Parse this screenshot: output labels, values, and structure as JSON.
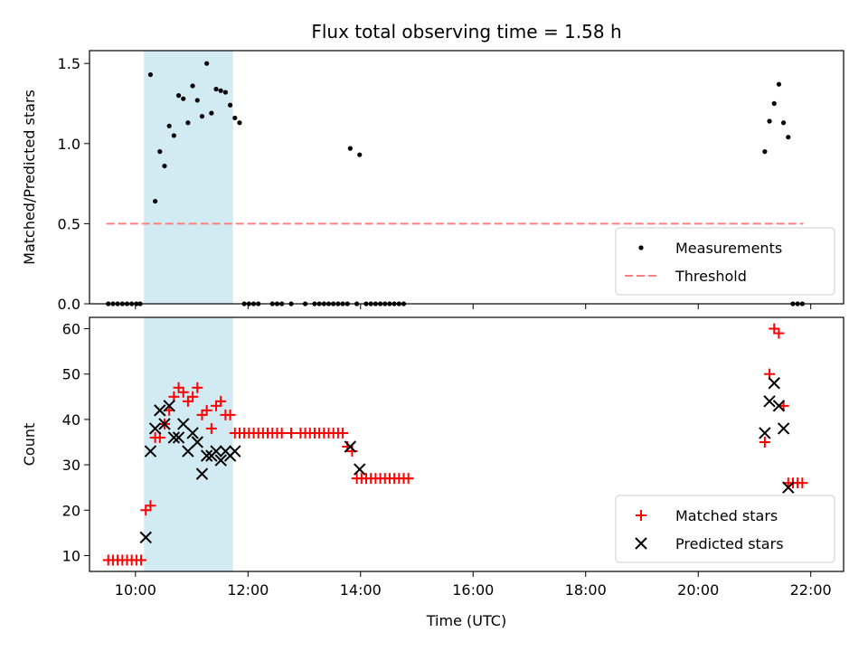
{
  "chart_data": {
    "title": "Flux total observing time = 1.58 h",
    "xlabel": "Time (UTC)",
    "x_ticks": [
      "10:00",
      "12:00",
      "14:00",
      "16:00",
      "18:00",
      "20:00",
      "22:00"
    ],
    "x_range": [
      "09:11",
      "22:35"
    ],
    "highlight_span": [
      "10:09",
      "11:44"
    ],
    "highlight_color": "#add8e6",
    "panels": [
      {
        "type": "scatter",
        "ylabel": "Matched/Predicted stars",
        "ylim": [
          0,
          1.58
        ],
        "y_ticks": [
          "0.0",
          "0.5",
          "1.0",
          "1.5"
        ],
        "threshold": 0.5,
        "threshold_range": [
          "09:29",
          "21:52"
        ],
        "legend_position": "lower-right",
        "series": [
          {
            "name": "Measurements",
            "color": "#000000",
            "marker": "dot",
            "points": [
              [
                "09:31",
                0
              ],
              [
                "09:36",
                0
              ],
              [
                "09:41",
                0
              ],
              [
                "09:46",
                0
              ],
              [
                "09:51",
                0
              ],
              [
                "09:56",
                0
              ],
              [
                "10:01",
                0
              ],
              [
                "10:05",
                0
              ],
              [
                "10:16",
                1.43
              ],
              [
                "10:21",
                0.64
              ],
              [
                "10:26",
                0.95
              ],
              [
                "10:31",
                0.86
              ],
              [
                "10:36",
                1.11
              ],
              [
                "10:41",
                1.05
              ],
              [
                "10:46",
                1.3
              ],
              [
                "10:51",
                1.28
              ],
              [
                "10:56",
                1.13
              ],
              [
                "11:01",
                1.36
              ],
              [
                "11:06",
                1.27
              ],
              [
                "11:11",
                1.17
              ],
              [
                "11:16",
                1.5
              ],
              [
                "11:21",
                1.19
              ],
              [
                "11:26",
                1.34
              ],
              [
                "11:31",
                1.33
              ],
              [
                "11:36",
                1.32
              ],
              [
                "11:41",
                1.24
              ],
              [
                "11:46",
                1.16
              ],
              [
                "11:51",
                1.13
              ],
              [
                "11:56",
                0
              ],
              [
                "12:01",
                0
              ],
              [
                "12:06",
                0
              ],
              [
                "12:11",
                0
              ],
              [
                "12:26",
                0
              ],
              [
                "12:31",
                0
              ],
              [
                "12:36",
                0
              ],
              [
                "12:46",
                0
              ],
              [
                "13:01",
                0
              ],
              [
                "13:11",
                0
              ],
              [
                "13:16",
                0
              ],
              [
                "13:21",
                0
              ],
              [
                "13:26",
                0
              ],
              [
                "13:31",
                0
              ],
              [
                "13:36",
                0
              ],
              [
                "13:41",
                0
              ],
              [
                "13:46",
                0
              ],
              [
                "13:56",
                0
              ],
              [
                "13:49",
                0.97
              ],
              [
                "13:59",
                0.93
              ],
              [
                "14:06",
                0
              ],
              [
                "14:11",
                0
              ],
              [
                "14:16",
                0
              ],
              [
                "14:21",
                0
              ],
              [
                "14:26",
                0
              ],
              [
                "14:31",
                0
              ],
              [
                "14:36",
                0
              ],
              [
                "14:41",
                0
              ],
              [
                "14:46",
                0
              ],
              [
                "21:11",
                0.95
              ],
              [
                "21:16",
                1.14
              ],
              [
                "21:21",
                1.25
              ],
              [
                "21:26",
                1.37
              ],
              [
                "21:31",
                1.13
              ],
              [
                "21:36",
                1.04
              ],
              [
                "21:41",
                0
              ],
              [
                "21:46",
                0
              ],
              [
                "21:51",
                0
              ]
            ]
          },
          {
            "name": "Threshold",
            "color": "#ff7f7f",
            "marker": "dashed-line"
          }
        ]
      },
      {
        "type": "scatter",
        "ylabel": "Count",
        "ylim": [
          6.5,
          62.5
        ],
        "y_ticks": [
          "10",
          "20",
          "30",
          "40",
          "50",
          "60"
        ],
        "legend_position": "lower-right",
        "series": [
          {
            "name": "Matched stars",
            "color": "#ff0000",
            "marker": "plus",
            "points": [
              [
                "09:31",
                9
              ],
              [
                "09:36",
                9
              ],
              [
                "09:41",
                9
              ],
              [
                "09:46",
                9
              ],
              [
                "09:51",
                9
              ],
              [
                "09:56",
                9
              ],
              [
                "10:01",
                9
              ],
              [
                "10:06",
                9
              ],
              [
                "10:11",
                20
              ],
              [
                "10:16",
                21
              ],
              [
                "10:21",
                36
              ],
              [
                "10:26",
                36
              ],
              [
                "10:31",
                39
              ],
              [
                "10:36",
                42
              ],
              [
                "10:41",
                45
              ],
              [
                "10:46",
                47
              ],
              [
                "10:51",
                46
              ],
              [
                "10:56",
                44
              ],
              [
                "11:01",
                45
              ],
              [
                "11:06",
                47
              ],
              [
                "11:11",
                41
              ],
              [
                "11:16",
                42
              ],
              [
                "11:21",
                38
              ],
              [
                "11:26",
                43
              ],
              [
                "11:31",
                44
              ],
              [
                "11:36",
                41
              ],
              [
                "11:41",
                41
              ],
              [
                "11:46",
                37
              ],
              [
                "11:51",
                37
              ],
              [
                "11:56",
                37
              ],
              [
                "12:01",
                37
              ],
              [
                "12:06",
                37
              ],
              [
                "12:11",
                37
              ],
              [
                "12:16",
                37
              ],
              [
                "12:21",
                37
              ],
              [
                "12:26",
                37
              ],
              [
                "12:31",
                37
              ],
              [
                "12:36",
                37
              ],
              [
                "12:46",
                37
              ],
              [
                "12:56",
                37
              ],
              [
                "13:01",
                37
              ],
              [
                "13:06",
                37
              ],
              [
                "13:11",
                37
              ],
              [
                "13:16",
                37
              ],
              [
                "13:21",
                37
              ],
              [
                "13:26",
                37
              ],
              [
                "13:31",
                37
              ],
              [
                "13:36",
                37
              ],
              [
                "13:41",
                37
              ],
              [
                "13:46",
                34
              ],
              [
                "13:51",
                33
              ],
              [
                "13:56",
                27
              ],
              [
                "14:01",
                27
              ],
              [
                "14:06",
                27
              ],
              [
                "14:11",
                27
              ],
              [
                "14:16",
                27
              ],
              [
                "14:21",
                27
              ],
              [
                "14:26",
                27
              ],
              [
                "14:31",
                27
              ],
              [
                "14:36",
                27
              ],
              [
                "14:41",
                27
              ],
              [
                "14:46",
                27
              ],
              [
                "14:51",
                27
              ],
              [
                "21:11",
                35
              ],
              [
                "21:16",
                50
              ],
              [
                "21:21",
                60
              ],
              [
                "21:26",
                59
              ],
              [
                "21:31",
                43
              ],
              [
                "21:36",
                26
              ],
              [
                "21:41",
                26
              ],
              [
                "21:46",
                26
              ],
              [
                "21:51",
                26
              ]
            ]
          },
          {
            "name": "Predicted stars",
            "color": "#000000",
            "marker": "cross",
            "points": [
              [
                "10:11",
                14
              ],
              [
                "10:16",
                33
              ],
              [
                "10:21",
                38
              ],
              [
                "10:26",
                42
              ],
              [
                "10:31",
                39
              ],
              [
                "10:36",
                43
              ],
              [
                "10:41",
                36
              ],
              [
                "10:46",
                36
              ],
              [
                "10:51",
                39
              ],
              [
                "10:56",
                33
              ],
              [
                "11:01",
                37
              ],
              [
                "11:06",
                35
              ],
              [
                "11:11",
                28
              ],
              [
                "11:16",
                32
              ],
              [
                "11:21",
                32
              ],
              [
                "11:26",
                33
              ],
              [
                "11:31",
                31
              ],
              [
                "11:36",
                33
              ],
              [
                "11:41",
                32
              ],
              [
                "11:46",
                33
              ],
              [
                "13:49",
                34
              ],
              [
                "13:59",
                29
              ],
              [
                "21:11",
                37
              ],
              [
                "21:16",
                44
              ],
              [
                "21:21",
                48
              ],
              [
                "21:26",
                43
              ],
              [
                "21:31",
                38
              ],
              [
                "21:36",
                25
              ]
            ]
          }
        ]
      }
    ]
  }
}
